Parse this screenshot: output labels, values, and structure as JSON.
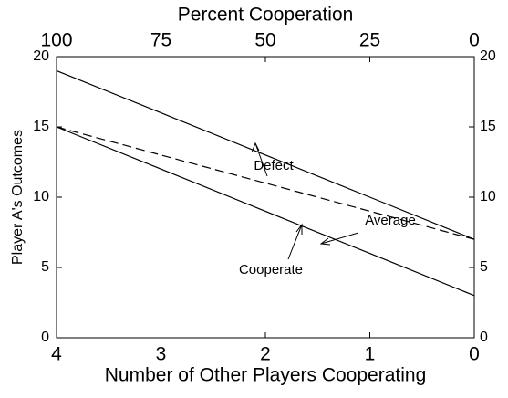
{
  "chart_data": {
    "type": "line",
    "xlabel": "Number of Other Players Cooperating",
    "ylabel": "Player A's Outcomes",
    "x2label": "Percent Cooperation",
    "x": [
      4,
      3,
      2,
      1,
      0
    ],
    "xlim": [
      4,
      0
    ],
    "xticks": [
      4,
      3,
      2,
      1,
      0
    ],
    "x2lim": [
      100,
      0
    ],
    "x2ticks": [
      100,
      75,
      50,
      25,
      0
    ],
    "ylim": [
      0,
      20
    ],
    "yticks": [
      0,
      5,
      10,
      15,
      20
    ],
    "y2lim": [
      0,
      20
    ],
    "y2ticks": [
      0,
      5,
      10,
      15,
      20
    ],
    "series": [
      {
        "name": "Defect",
        "color": "#000000",
        "dashed": false,
        "values": [
          19,
          16,
          13,
          10,
          7
        ]
      },
      {
        "name": "Average",
        "color": "#000000",
        "dashed": true,
        "values": [
          15,
          13,
          11,
          9,
          7
        ]
      },
      {
        "name": "Cooperate",
        "color": "#000000",
        "dashed": false,
        "values": [
          15,
          12,
          9,
          6,
          3
        ]
      }
    ]
  }
}
